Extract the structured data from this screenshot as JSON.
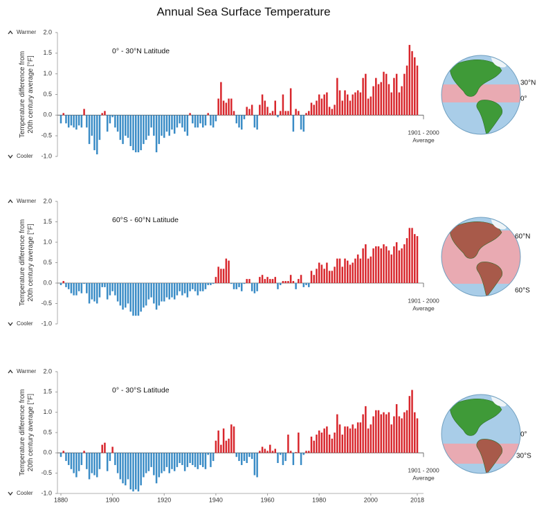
{
  "chart_data": [
    {
      "type": "bar",
      "title": "Annual Sea Surface Temperature",
      "subtitle": "0° - 30°N Latitude",
      "y_label": [
        "Temperature difference from",
        "20th century average [°F]"
      ],
      "warmer_label": "Warmer",
      "cooler_label": "Cooler",
      "baseline_label": [
        "1901 - 2000",
        "Average"
      ],
      "globe_labels": [
        "30°N",
        "0°"
      ],
      "colors": {
        "positive": "#d8262c",
        "negative": "#3a8cc6"
      },
      "xlim": [
        1879,
        2019
      ],
      "ylim": [
        -1,
        2
      ],
      "yticks": [
        {
          "value": -1,
          "label": "-1.0"
        },
        -0.5,
        {
          "value": 0,
          "label": "0.0"
        },
        0.5,
        {
          "value": 1,
          "label": "1.0"
        },
        1.5,
        {
          "value": 2,
          "label": "2.0"
        }
      ],
      "x": [
        1880,
        1881,
        1882,
        1883,
        1884,
        1885,
        1886,
        1887,
        1888,
        1889,
        1890,
        1891,
        1892,
        1893,
        1894,
        1895,
        1896,
        1897,
        1898,
        1899,
        1900,
        1901,
        1902,
        1903,
        1904,
        1905,
        1906,
        1907,
        1908,
        1909,
        1910,
        1911,
        1912,
        1913,
        1914,
        1915,
        1916,
        1917,
        1918,
        1919,
        1920,
        1921,
        1922,
        1923,
        1924,
        1925,
        1926,
        1927,
        1928,
        1929,
        1930,
        1931,
        1932,
        1933,
        1934,
        1935,
        1936,
        1937,
        1938,
        1939,
        1940,
        1941,
        1942,
        1943,
        1944,
        1945,
        1946,
        1947,
        1948,
        1949,
        1950,
        1951,
        1952,
        1953,
        1954,
        1955,
        1956,
        1957,
        1958,
        1959,
        1960,
        1961,
        1962,
        1963,
        1964,
        1965,
        1966,
        1967,
        1968,
        1969,
        1970,
        1971,
        1972,
        1973,
        1974,
        1975,
        1976,
        1977,
        1978,
        1979,
        1980,
        1981,
        1982,
        1983,
        1984,
        1985,
        1986,
        1987,
        1988,
        1989,
        1990,
        1991,
        1992,
        1993,
        1994,
        1995,
        1996,
        1997,
        1998,
        1999,
        2000,
        2001,
        2002,
        2003,
        2004,
        2005,
        2006,
        2007,
        2008,
        2009,
        2010,
        2011,
        2012,
        2013,
        2014,
        2015,
        2016,
        2017,
        2018
      ],
      "values": [
        -0.2,
        0.05,
        -0.2,
        -0.3,
        -0.25,
        -0.3,
        -0.35,
        -0.25,
        -0.3,
        0.15,
        -0.3,
        -0.7,
        -0.5,
        -0.85,
        -0.95,
        -0.6,
        0.05,
        0.1,
        -0.4,
        -0.2,
        -0.05,
        -0.3,
        -0.4,
        -0.6,
        -0.7,
        -0.5,
        -0.55,
        -0.75,
        -0.85,
        -0.9,
        -0.9,
        -0.85,
        -0.7,
        -0.6,
        -0.5,
        -0.3,
        -0.5,
        -0.9,
        -0.7,
        -0.5,
        -0.55,
        -0.4,
        -0.5,
        -0.35,
        -0.45,
        -0.3,
        -0.2,
        -0.3,
        -0.4,
        -0.5,
        0.05,
        -0.2,
        -0.3,
        -0.3,
        -0.2,
        -0.3,
        -0.25,
        0.05,
        -0.25,
        -0.3,
        -0.15,
        0.4,
        0.8,
        0.35,
        0.3,
        0.4,
        0.4,
        0.1,
        -0.2,
        -0.3,
        -0.35,
        -0.1,
        0.2,
        0.15,
        0.25,
        -0.3,
        -0.35,
        0.25,
        0.5,
        0.35,
        0.2,
        0.05,
        0.1,
        0.35,
        -0.05,
        0.1,
        0.5,
        0.1,
        0.1,
        0.65,
        -0.4,
        0.15,
        0.1,
        -0.35,
        -0.4,
        0.05,
        0.1,
        0.3,
        0.25,
        0.35,
        0.5,
        0.4,
        0.5,
        0.55,
        0.2,
        0.15,
        0.25,
        0.9,
        0.6,
        0.35,
        0.6,
        0.5,
        0.35,
        0.5,
        0.55,
        0.6,
        0.55,
        0.9,
        1.0,
        0.4,
        0.45,
        0.7,
        0.9,
        0.75,
        0.8,
        1.05,
        1.0,
        0.75,
        0.55,
        0.9,
        1.0,
        0.55,
        0.7,
        1.0,
        1.2,
        1.7,
        1.55,
        1.4,
        1.2
      ]
    },
    {
      "type": "bar",
      "subtitle": "60°S - 60°N Latitude",
      "y_label": [
        "Temperature difference from",
        "20th century average [°F]"
      ],
      "warmer_label": "Warmer",
      "cooler_label": "Cooler",
      "baseline_label": [
        "1901 - 2000",
        "Average"
      ],
      "globe_labels": [
        "60°N",
        "60°S"
      ],
      "colors": {
        "positive": "#d8262c",
        "negative": "#3a8cc6"
      },
      "xlim": [
        1879,
        2019
      ],
      "ylim": [
        -1,
        2
      ],
      "yticks": [
        {
          "value": -1,
          "label": "-1.0"
        },
        -0.5,
        {
          "value": 0,
          "label": "0.0"
        },
        0.5,
        {
          "value": 1,
          "label": "1.0"
        },
        1.5,
        {
          "value": 2,
          "label": "2.0"
        }
      ],
      "x": [
        1880,
        1881,
        1882,
        1883,
        1884,
        1885,
        1886,
        1887,
        1888,
        1889,
        1890,
        1891,
        1892,
        1893,
        1894,
        1895,
        1896,
        1897,
        1898,
        1899,
        1900,
        1901,
        1902,
        1903,
        1904,
        1905,
        1906,
        1907,
        1908,
        1909,
        1910,
        1911,
        1912,
        1913,
        1914,
        1915,
        1916,
        1917,
        1918,
        1919,
        1920,
        1921,
        1922,
        1923,
        1924,
        1925,
        1926,
        1927,
        1928,
        1929,
        1930,
        1931,
        1932,
        1933,
        1934,
        1935,
        1936,
        1937,
        1938,
        1939,
        1940,
        1941,
        1942,
        1943,
        1944,
        1945,
        1946,
        1947,
        1948,
        1949,
        1950,
        1951,
        1952,
        1953,
        1954,
        1955,
        1956,
        1957,
        1958,
        1959,
        1960,
        1961,
        1962,
        1963,
        1964,
        1965,
        1966,
        1967,
        1968,
        1969,
        1970,
        1971,
        1972,
        1973,
        1974,
        1975,
        1976,
        1977,
        1978,
        1979,
        1980,
        1981,
        1982,
        1983,
        1984,
        1985,
        1986,
        1987,
        1988,
        1989,
        1990,
        1991,
        1992,
        1993,
        1994,
        1995,
        1996,
        1997,
        1998,
        1999,
        2000,
        2001,
        2002,
        2003,
        2004,
        2005,
        2006,
        2007,
        2008,
        2009,
        2010,
        2011,
        2012,
        2013,
        2014,
        2015,
        2016,
        2017,
        2018
      ],
      "values": [
        -0.05,
        0.05,
        -0.1,
        -0.15,
        -0.25,
        -0.3,
        -0.3,
        -0.2,
        -0.25,
        -0.02,
        -0.25,
        -0.5,
        -0.4,
        -0.45,
        -0.5,
        -0.35,
        -0.1,
        -0.1,
        -0.4,
        -0.3,
        -0.2,
        -0.3,
        -0.45,
        -0.55,
        -0.65,
        -0.6,
        -0.5,
        -0.7,
        -0.8,
        -0.8,
        -0.8,
        -0.7,
        -0.6,
        -0.55,
        -0.4,
        -0.35,
        -0.5,
        -0.65,
        -0.55,
        -0.45,
        -0.45,
        -0.35,
        -0.4,
        -0.35,
        -0.4,
        -0.3,
        -0.2,
        -0.3,
        -0.25,
        -0.35,
        -0.2,
        -0.15,
        -0.2,
        -0.3,
        -0.2,
        -0.2,
        -0.15,
        -0.05,
        -0.05,
        -0.02,
        0.15,
        0.4,
        0.35,
        0.35,
        0.6,
        0.55,
        -0.02,
        -0.15,
        -0.15,
        -0.1,
        -0.2,
        -0.02,
        0.1,
        0.1,
        -0.2,
        -0.25,
        -0.2,
        0.15,
        0.2,
        0.1,
        0.15,
        0.1,
        0.1,
        0.15,
        -0.15,
        -0.05,
        0.05,
        0.05,
        0.05,
        0.2,
        0.05,
        -0.15,
        0.1,
        0.2,
        -0.1,
        -0.05,
        -0.1,
        0.3,
        0.2,
        0.35,
        0.5,
        0.45,
        0.35,
        0.5,
        0.3,
        0.3,
        0.4,
        0.6,
        0.6,
        0.4,
        0.6,
        0.55,
        0.45,
        0.5,
        0.6,
        0.7,
        0.6,
        0.85,
        0.95,
        0.6,
        0.65,
        0.85,
        0.9,
        0.9,
        0.85,
        0.95,
        0.9,
        0.8,
        0.7,
        0.9,
        1.0,
        0.8,
        0.85,
        0.95,
        1.1,
        1.35,
        1.35,
        1.2,
        1.15
      ]
    },
    {
      "type": "bar",
      "subtitle": "0° - 30°S Latitude",
      "y_label": [
        "Temperature difference from",
        "20th century average [°F]"
      ],
      "warmer_label": "Warmer",
      "cooler_label": "Cooler",
      "baseline_label": [
        "1901 - 2000",
        "Average"
      ],
      "globe_labels": [
        "0°",
        "30°S"
      ],
      "colors": {
        "positive": "#d8262c",
        "negative": "#3a8cc6"
      },
      "xlim": [
        1879,
        2019
      ],
      "xticks": [
        1880,
        1900,
        1920,
        1940,
        1960,
        1980,
        2000,
        2018
      ],
      "ylim": [
        -1,
        2
      ],
      "yticks": [
        {
          "value": -1,
          "label": "-1.0"
        },
        -0.5,
        {
          "value": 0,
          "label": "0.0"
        },
        0.5,
        {
          "value": 1,
          "label": "1.0"
        },
        1.5,
        {
          "value": 2,
          "label": "2.0"
        }
      ],
      "x": [
        1880,
        1881,
        1882,
        1883,
        1884,
        1885,
        1886,
        1887,
        1888,
        1889,
        1890,
        1891,
        1892,
        1893,
        1894,
        1895,
        1896,
        1897,
        1898,
        1899,
        1900,
        1901,
        1902,
        1903,
        1904,
        1905,
        1906,
        1907,
        1908,
        1909,
        1910,
        1911,
        1912,
        1913,
        1914,
        1915,
        1916,
        1917,
        1918,
        1919,
        1920,
        1921,
        1922,
        1923,
        1924,
        1925,
        1926,
        1927,
        1928,
        1929,
        1930,
        1931,
        1932,
        1933,
        1934,
        1935,
        1936,
        1937,
        1938,
        1939,
        1940,
        1941,
        1942,
        1943,
        1944,
        1945,
        1946,
        1947,
        1948,
        1949,
        1950,
        1951,
        1952,
        1953,
        1954,
        1955,
        1956,
        1957,
        1958,
        1959,
        1960,
        1961,
        1962,
        1963,
        1964,
        1965,
        1966,
        1967,
        1968,
        1969,
        1970,
        1971,
        1972,
        1973,
        1974,
        1975,
        1976,
        1977,
        1978,
        1979,
        1980,
        1981,
        1982,
        1983,
        1984,
        1985,
        1986,
        1987,
        1988,
        1989,
        1990,
        1991,
        1992,
        1993,
        1994,
        1995,
        1996,
        1997,
        1998,
        1999,
        2000,
        2001,
        2002,
        2003,
        2004,
        2005,
        2006,
        2007,
        2008,
        2009,
        2010,
        2011,
        2012,
        2013,
        2014,
        2015,
        2016,
        2017,
        2018
      ],
      "values": [
        -0.1,
        0.05,
        -0.2,
        -0.3,
        -0.4,
        -0.5,
        -0.6,
        -0.45,
        -0.3,
        0.05,
        -0.4,
        -0.65,
        -0.5,
        -0.55,
        -0.6,
        -0.4,
        0.2,
        0.25,
        -0.45,
        -0.2,
        0.15,
        -0.3,
        -0.5,
        -0.65,
        -0.75,
        -0.8,
        -0.65,
        -0.9,
        -0.95,
        -0.9,
        -0.95,
        -0.8,
        -0.6,
        -0.5,
        -0.45,
        -0.35,
        -0.55,
        -0.75,
        -0.6,
        -0.5,
        -0.45,
        -0.35,
        -0.5,
        -0.4,
        -0.45,
        -0.35,
        -0.25,
        -0.3,
        -0.45,
        -0.35,
        -0.25,
        -0.3,
        -0.35,
        -0.4,
        -0.3,
        -0.35,
        -0.4,
        -0.05,
        -0.35,
        -0.2,
        0.3,
        0.55,
        0.2,
        0.6,
        0.3,
        0.35,
        0.7,
        0.65,
        -0.1,
        -0.2,
        -0.3,
        -0.2,
        -0.25,
        -0.1,
        -0.15,
        -0.55,
        -0.6,
        0.05,
        0.15,
        0.1,
        0.05,
        0.2,
        0.05,
        0.1,
        -0.25,
        -0.05,
        -0.3,
        -0.2,
        0.45,
        0.05,
        -0.3,
        0.02,
        0.5,
        -0.3,
        -0.05,
        0.05,
        0.05,
        0.4,
        0.3,
        0.45,
        0.55,
        0.5,
        0.6,
        0.65,
        0.45,
        0.35,
        0.5,
        0.95,
        0.7,
        0.45,
        0.65,
        0.65,
        0.6,
        0.7,
        0.6,
        0.75,
        0.75,
        0.95,
        1.15,
        0.6,
        0.7,
        0.9,
        1.05,
        1.05,
        0.95,
        1.0,
        0.95,
        1.0,
        0.7,
        0.9,
        1.2,
        0.9,
        0.85,
        1.0,
        1.05,
        1.4,
        1.55,
        1.0,
        0.85
      ]
    }
  ]
}
